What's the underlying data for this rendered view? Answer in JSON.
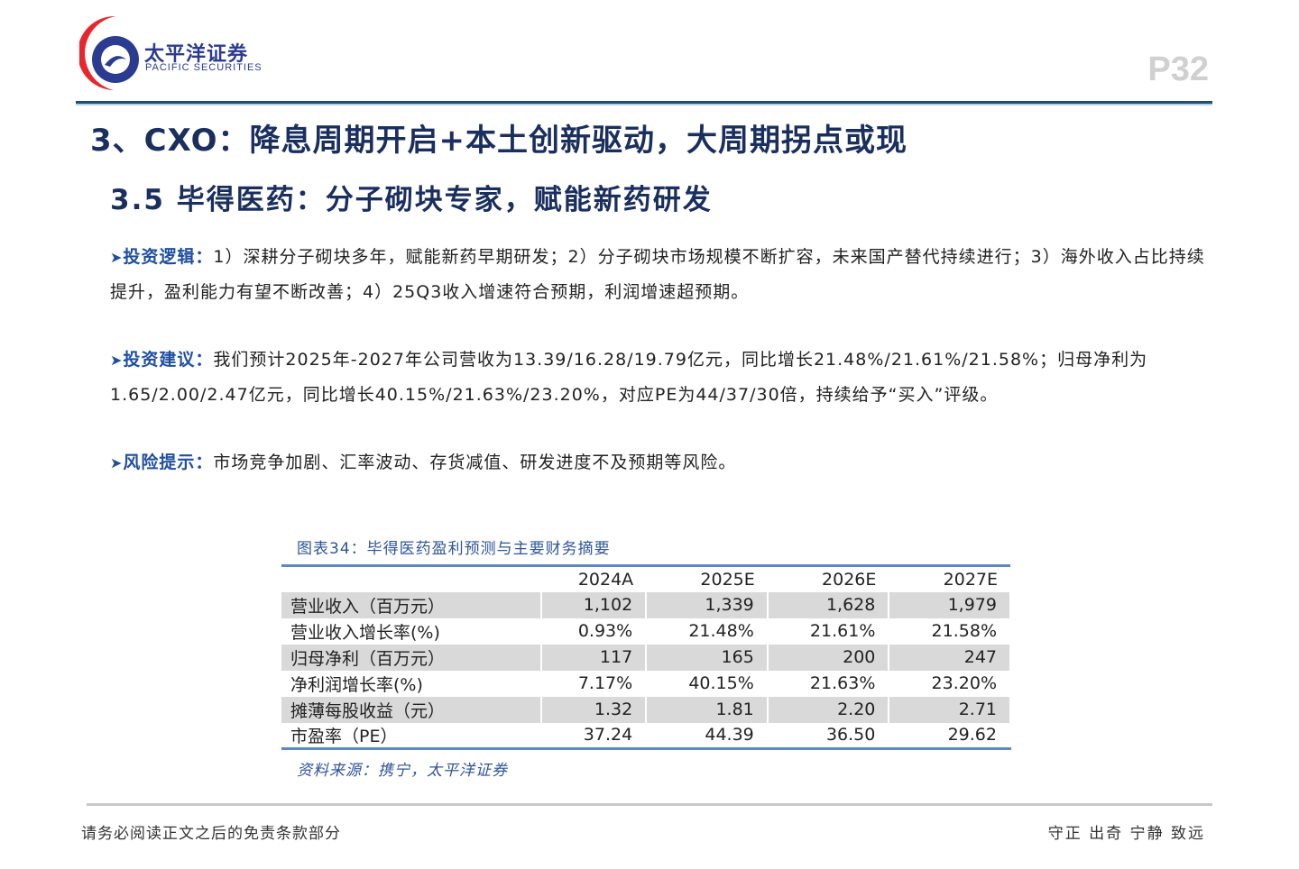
{
  "header": {
    "logo_cn": "太平洋证券",
    "logo_en": "PACIFIC SECURITIES",
    "page": "P32"
  },
  "title": "3、CXO：降息周期开启+本土创新驱动，大周期拐点或现",
  "subtitle": "3.5 毕得医药：分子砌块专家，赋能新药研发",
  "bullets": [
    {
      "label": "投资逻辑：",
      "text": "1）深耕分子砌块多年，赋能新药早期研发；2）分子砌块市场规模不断扩容，未来国产替代持续进行；3）海外收入占比持续提升，盈利能力有望不断改善；4）25Q3收入增速符合预期，利润增速超预期。"
    },
    {
      "label": "投资建议：",
      "text": "我们预计2025年-2027年公司营收为13.39/16.28/19.79亿元，同比增长21.48%/21.61%/21.58%；归母净利为1.65/2.00/2.47亿元，同比增长40.15%/21.63%/23.20%，对应PE为44/37/30倍，持续给予“买入”评级。"
    },
    {
      "label": "风险提示：",
      "text": "市场竞争加剧、汇率波动、存货减值、研发进度不及预期等风险。"
    }
  ],
  "table": {
    "caption": "图表34：毕得医药盈利预测与主要财务摘要",
    "headers": [
      "",
      "2024A",
      "2025E",
      "2026E",
      "2027E"
    ],
    "rows": [
      [
        "营业收入（百万元）",
        "1,102",
        "1,339",
        "1,628",
        "1,979"
      ],
      [
        "营业收入增长率(%)",
        "0.93%",
        "21.48%",
        "21.61%",
        "21.58%"
      ],
      [
        "归母净利（百万元）",
        "117",
        "165",
        "200",
        "247"
      ],
      [
        "净利润增长率(%)",
        "7.17%",
        "40.15%",
        "21.63%",
        "23.20%"
      ],
      [
        "摊薄每股收益（元）",
        "1.32",
        "1.81",
        "2.20",
        "2.71"
      ],
      [
        "市盈率（PE）",
        "37.24",
        "44.39",
        "36.50",
        "29.62"
      ]
    ],
    "source": "资料来源：携宁，太平洋证券"
  },
  "footer": {
    "left": "请务必阅读正文之后的免责条款部分",
    "right": "守正 出奇 宁静 致远"
  }
}
